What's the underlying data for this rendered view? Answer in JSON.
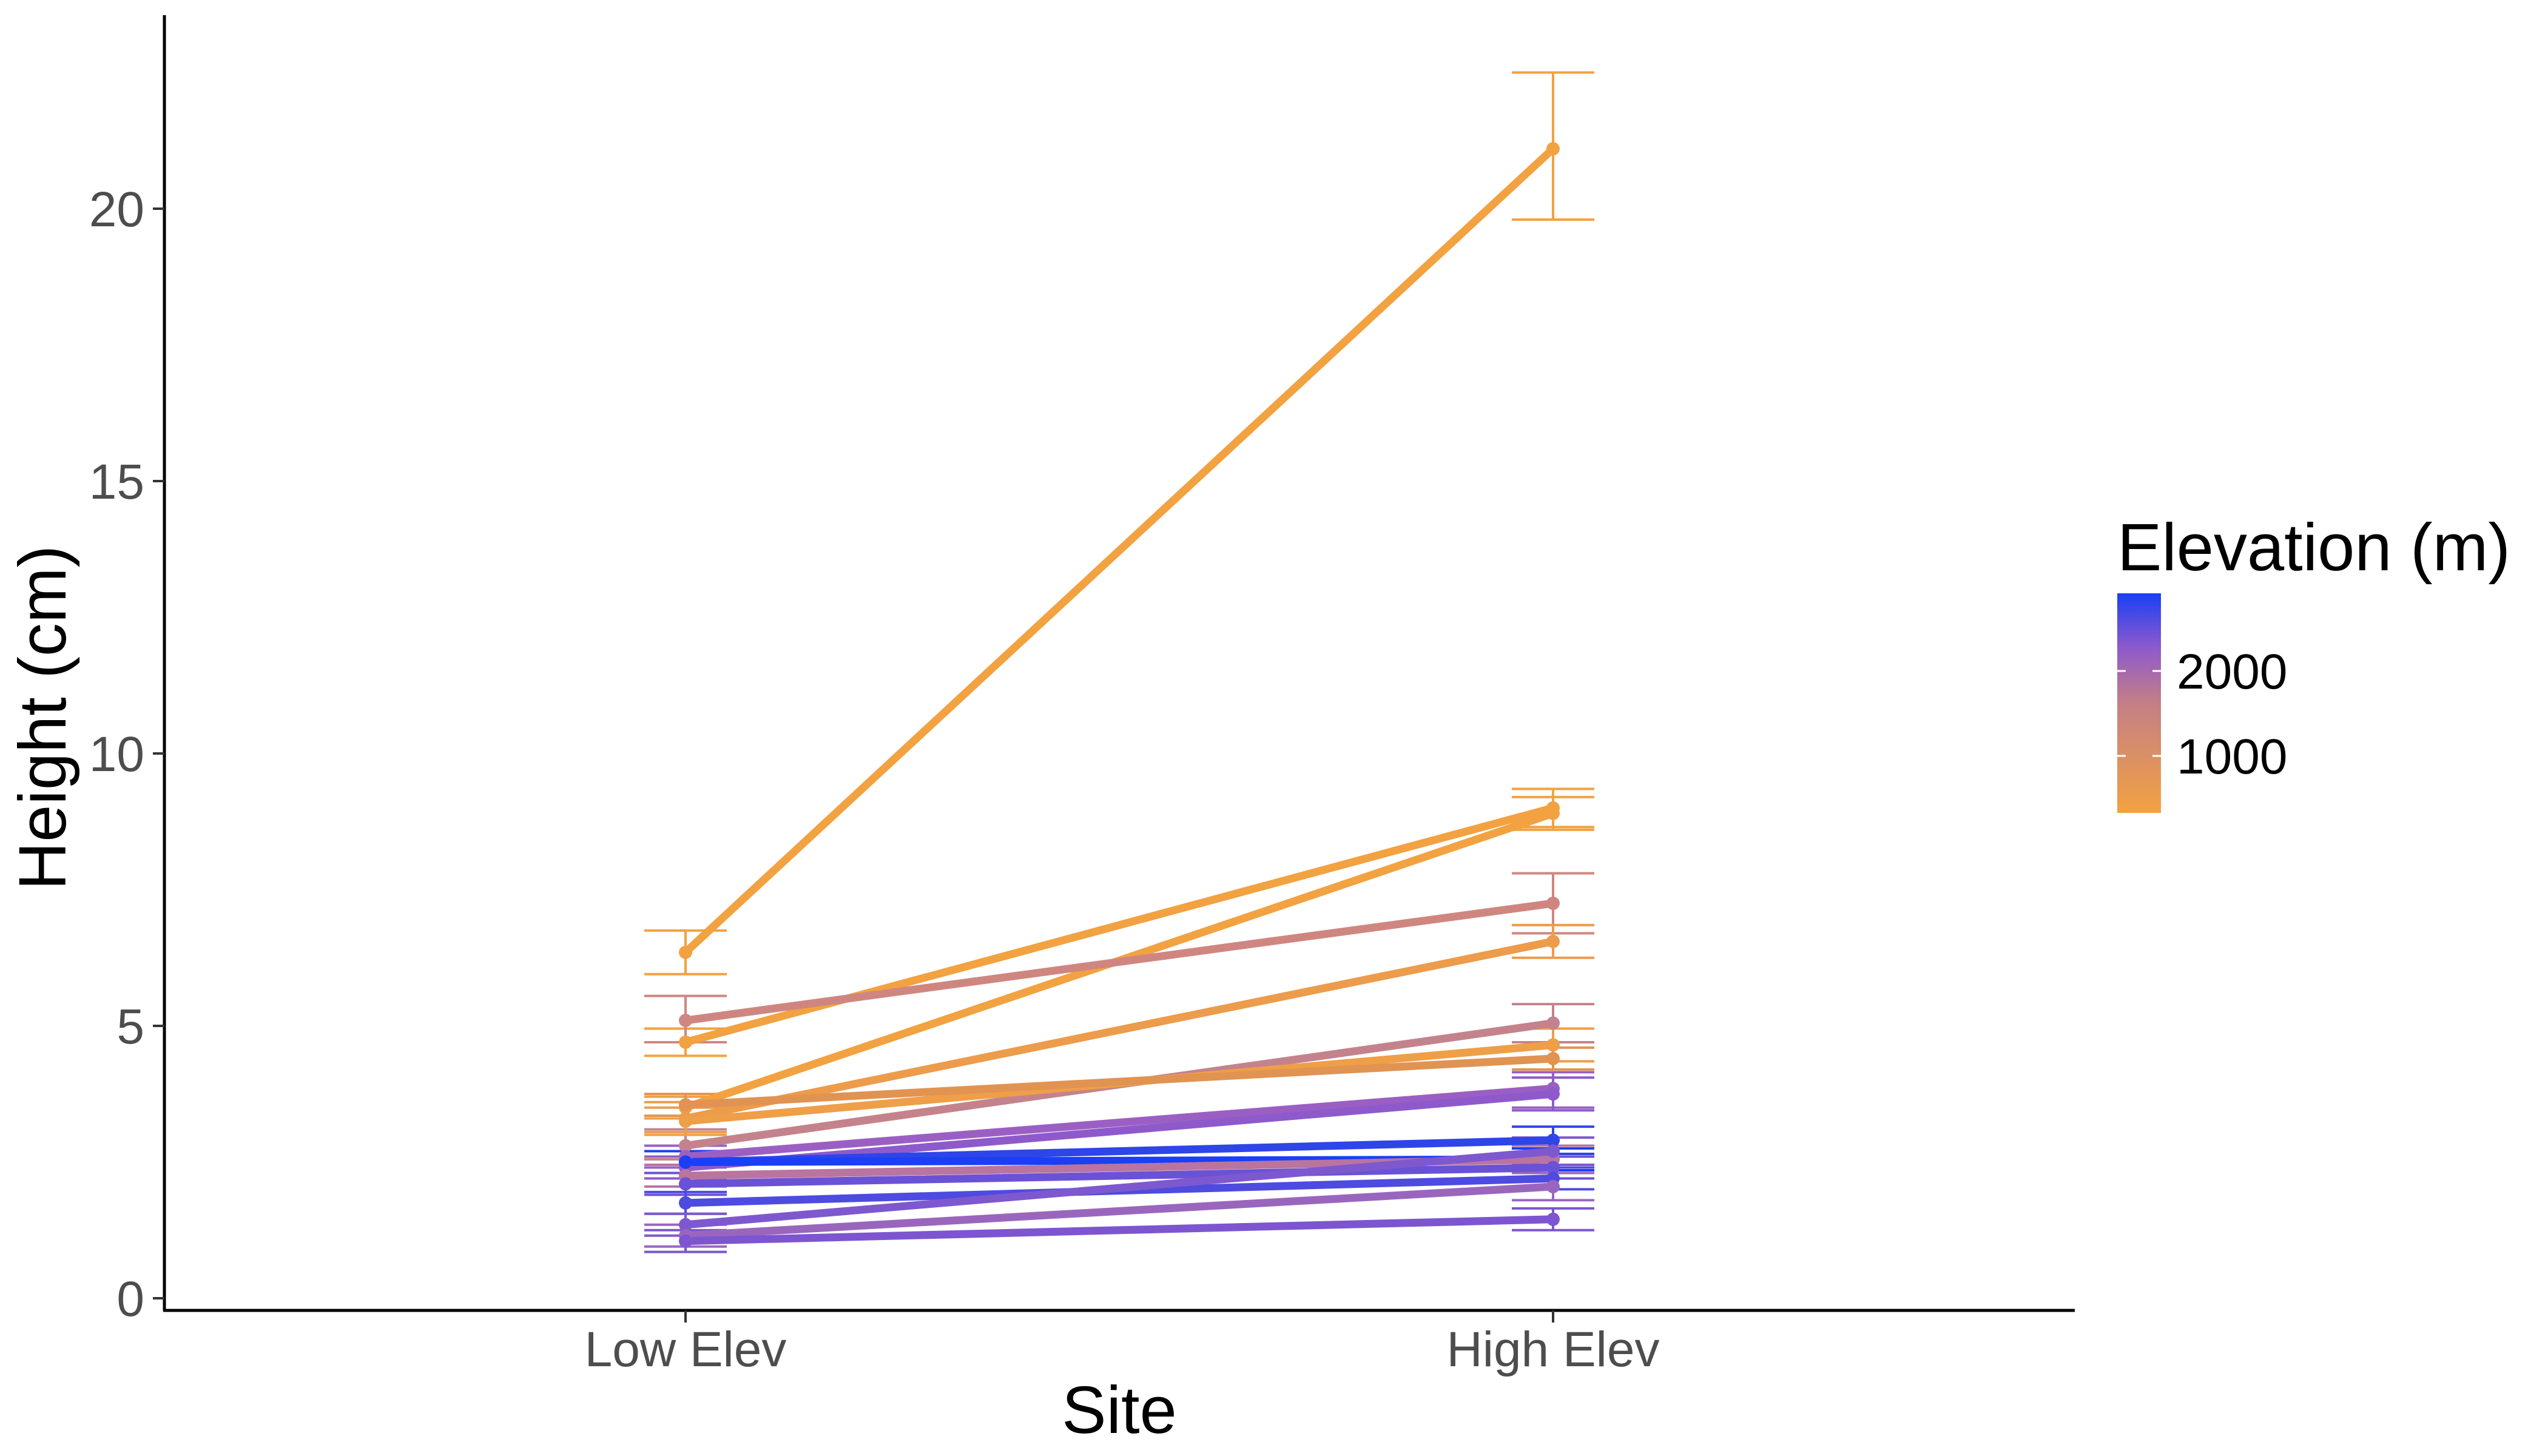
{
  "chart_data": {
    "type": "line",
    "title": "",
    "xlabel": "Site",
    "ylabel": "Height (cm)",
    "categories": [
      "Low Elev",
      "High Elev"
    ],
    "ylim": [
      0,
      23
    ],
    "yticks": [
      "0",
      "5",
      "10",
      "15",
      "20"
    ],
    "grid": false,
    "legend": {
      "title": "Elevation (m)",
      "position": "right",
      "type": "gradient",
      "low_color": "#f2a241",
      "mid_color": "#c47f86",
      "high_color": "#1a3ff5",
      "labels": [
        "2000",
        "1000"
      ]
    },
    "series": [
      {
        "color": "#f2a241",
        "values": [
          6.35,
          21.1
        ],
        "errors": [
          [
            5.95,
            6.75
          ],
          [
            19.8,
            22.5
          ]
        ]
      },
      {
        "color": "#f2a241",
        "values": [
          4.7,
          9.0
        ],
        "errors": [
          [
            4.45,
            4.95
          ],
          [
            8.65,
            9.35
          ]
        ]
      },
      {
        "color": "#f2a241",
        "values": [
          3.5,
          8.9
        ],
        "errors": [
          [
            3.3,
            3.7
          ],
          [
            8.6,
            9.2
          ]
        ]
      },
      {
        "color": "#d08680",
        "values": [
          5.1,
          7.25
        ],
        "errors": [
          [
            4.7,
            5.55
          ],
          [
            6.7,
            7.8
          ]
        ]
      },
      {
        "color": "#ec9c4b",
        "values": [
          3.3,
          6.55
        ],
        "errors": [
          [
            3.05,
            3.6
          ],
          [
            6.25,
            6.85
          ]
        ]
      },
      {
        "color": "#c4838c",
        "values": [
          2.8,
          5.05
        ],
        "errors": [
          [
            2.55,
            3.1
          ],
          [
            4.7,
            5.4
          ]
        ]
      },
      {
        "color": "#ee9f48",
        "values": [
          3.25,
          4.65
        ],
        "errors": [
          [
            3.0,
            3.5
          ],
          [
            4.35,
            4.95
          ]
        ]
      },
      {
        "color": "#e19352",
        "values": [
          3.55,
          4.4
        ],
        "errors": [
          [
            3.35,
            3.75
          ],
          [
            4.2,
            4.6
          ]
        ]
      },
      {
        "color": "#9b5fc4",
        "values": [
          2.6,
          3.85
        ],
        "errors": [
          [
            2.4,
            2.8
          ],
          [
            3.5,
            4.15
          ]
        ]
      },
      {
        "color": "#8e5acb",
        "values": [
          2.4,
          3.75
        ],
        "errors": [
          [
            2.2,
            2.6
          ],
          [
            3.45,
            4.05
          ]
        ]
      },
      {
        "color": "#2e45e8",
        "values": [
          2.5,
          2.9
        ],
        "errors": [
          [
            2.3,
            2.7
          ],
          [
            2.65,
            3.15
          ]
        ]
      },
      {
        "color": "#1a3ff5",
        "values": [
          2.5,
          2.55
        ],
        "errors": [
          [
            2.3,
            2.7
          ],
          [
            2.35,
            2.75
          ]
        ]
      },
      {
        "color": "#b974a0",
        "values": [
          2.25,
          2.55
        ],
        "errors": [
          [
            2.05,
            2.45
          ],
          [
            2.3,
            2.8
          ]
        ]
      },
      {
        "color": "#6a52d6",
        "values": [
          2.1,
          2.4
        ],
        "errors": [
          [
            1.9,
            2.3
          ],
          [
            2.2,
            2.6
          ]
        ]
      },
      {
        "color": "#4d4be0",
        "values": [
          1.75,
          2.2
        ],
        "errors": [
          [
            1.55,
            1.95
          ],
          [
            2.0,
            2.4
          ]
        ]
      },
      {
        "color": "#7e58cf",
        "values": [
          1.35,
          2.7
        ],
        "errors": [
          [
            1.15,
            1.55
          ],
          [
            2.45,
            2.95
          ]
        ]
      },
      {
        "color": "#9a66bd",
        "values": [
          1.15,
          2.05
        ],
        "errors": [
          [
            0.95,
            1.35
          ],
          [
            1.8,
            2.3
          ]
        ]
      },
      {
        "color": "#7d55d0",
        "values": [
          1.05,
          1.45
        ],
        "errors": [
          [
            0.85,
            1.25
          ],
          [
            1.25,
            1.65
          ]
        ]
      }
    ]
  }
}
